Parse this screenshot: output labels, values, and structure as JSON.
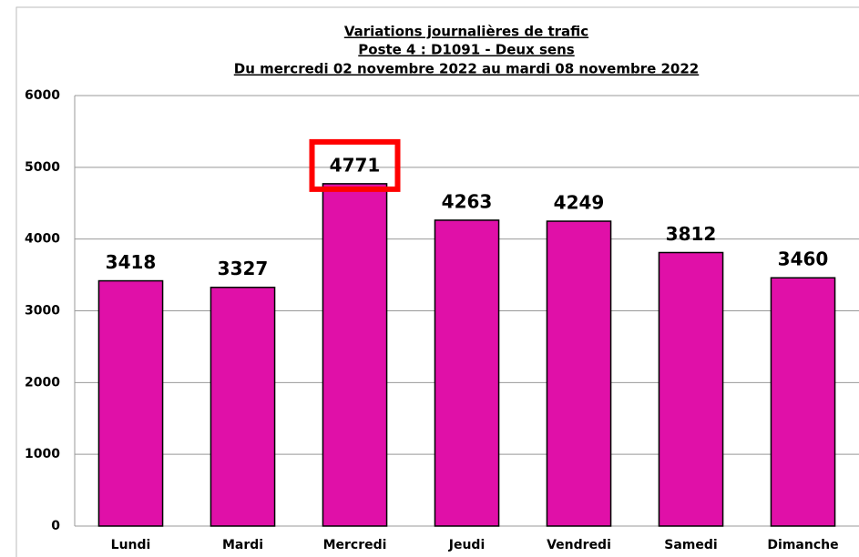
{
  "chart_data": {
    "type": "bar",
    "title": [
      "Variations journalières de trafic",
      "Poste 4 : D1091 - Deux sens",
      "Du mercredi 02 novembre 2022 au mardi 08 novembre 2022"
    ],
    "categories": [
      "Lundi",
      "Mardi",
      "Mercredi",
      "Jeudi",
      "Vendredi",
      "Samedi",
      "Dimanche"
    ],
    "values": [
      3418,
      3327,
      4771,
      4263,
      4249,
      3812,
      3460
    ],
    "color": "#e010a8",
    "ylim": [
      0,
      6000
    ],
    "yticks": [
      0,
      1000,
      2000,
      3000,
      4000,
      5000,
      6000
    ],
    "grid": true,
    "highlight": 2,
    "highlight_color": "#ff0000"
  }
}
